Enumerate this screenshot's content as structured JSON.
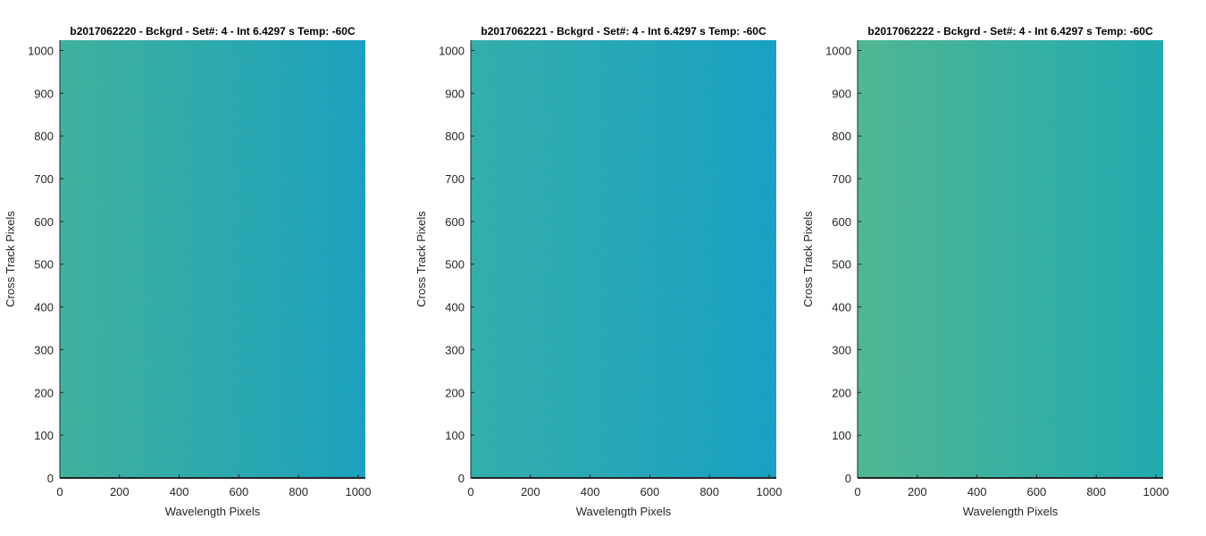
{
  "chart_data": [
    {
      "type": "heatmap",
      "title": "b2017062220 - Bckgrd - Set#: 4 - Int 6.4297 s Temp: -60C",
      "xlabel": "Wavelength Pixels",
      "ylabel": "Cross Track Pixels",
      "xlim": [
        0,
        1024
      ],
      "ylim": [
        0,
        1024
      ],
      "xticks": [
        0,
        200,
        400,
        600,
        800,
        1000
      ],
      "yticks": [
        0,
        100,
        200,
        300,
        400,
        500,
        600,
        700,
        800,
        900,
        1000
      ],
      "colors": {
        "left": "#3aaf9c",
        "right": "#159fc0"
      }
    },
    {
      "type": "heatmap",
      "title": "b2017062221 - Bckgrd - Set#: 4 - Int 6.4297 s Temp: -60C",
      "xlabel": "Wavelength Pixels",
      "ylabel": "Cross Track Pixels",
      "xlim": [
        0,
        1024
      ],
      "ylim": [
        0,
        1024
      ],
      "xticks": [
        0,
        200,
        400,
        600,
        800,
        1000
      ],
      "yticks": [
        0,
        100,
        200,
        300,
        400,
        500,
        600,
        700,
        800,
        900,
        1000
      ],
      "colors": {
        "left": "#2eacac",
        "right": "#129ec5"
      }
    },
    {
      "type": "heatmap",
      "title": "b2017062222 - Bckgrd - Set#: 4 - Int 6.4297 s Temp: -60C",
      "xlabel": "Wavelength Pixels",
      "ylabel": "Cross Track Pixels",
      "xlim": [
        0,
        1024
      ],
      "ylim": [
        0,
        1024
      ],
      "xticks": [
        0,
        200,
        400,
        600,
        800,
        1000
      ],
      "yticks": [
        0,
        100,
        200,
        300,
        400,
        500,
        600,
        700,
        800,
        900,
        1000
      ],
      "colors": {
        "left": "#4cb592",
        "right": "#1ba8b0"
      }
    }
  ]
}
